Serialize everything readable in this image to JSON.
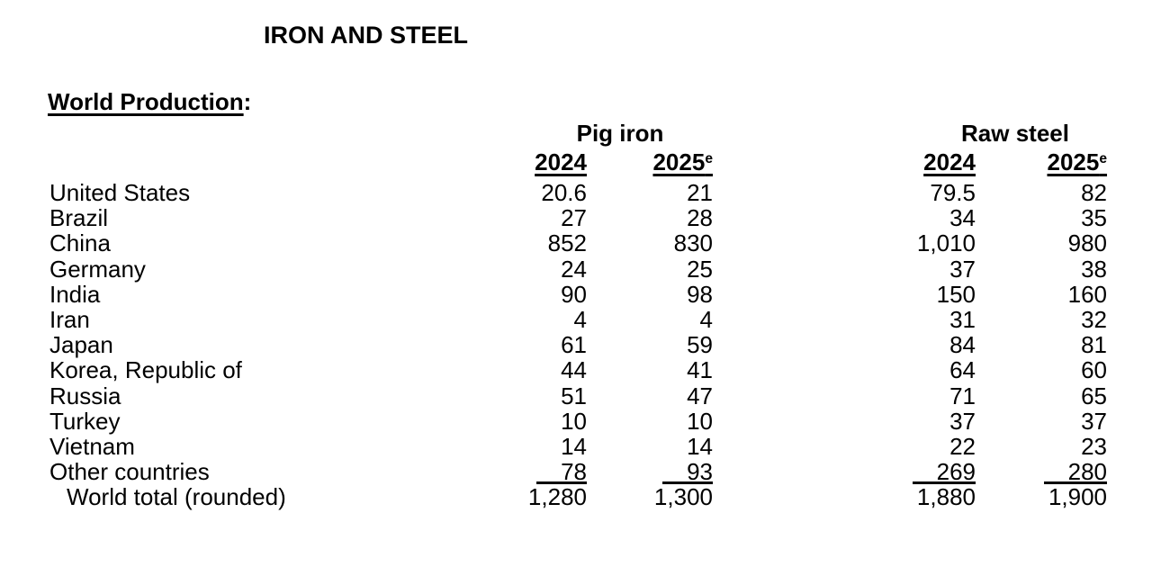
{
  "document": {
    "title": "IRON AND STEEL"
  },
  "section": {
    "label": "World Production",
    "punctuation": ":"
  },
  "colors": {
    "text": "#000000",
    "background": "#ffffff"
  },
  "table": {
    "group_headers": [
      {
        "label": "Pig iron"
      },
      {
        "label": "Raw steel"
      }
    ],
    "year_headers": [
      {
        "year": "2024",
        "superscript": ""
      },
      {
        "year": "2025",
        "superscript": "e"
      },
      {
        "year": "2024",
        "superscript": ""
      },
      {
        "year": "2025",
        "superscript": "e"
      }
    ],
    "rows": [
      {
        "country": "United States",
        "pig_iron_2024": "20.6",
        "pig_iron_2025e": "21",
        "raw_steel_2024": "79.5",
        "raw_steel_2025e": "82"
      },
      {
        "country": "Brazil",
        "pig_iron_2024": "27",
        "pig_iron_2025e": "28",
        "raw_steel_2024": "34",
        "raw_steel_2025e": "35"
      },
      {
        "country": "China",
        "pig_iron_2024": "852",
        "pig_iron_2025e": "830",
        "raw_steel_2024": "1,010",
        "raw_steel_2025e": "980"
      },
      {
        "country": "Germany",
        "pig_iron_2024": "24",
        "pig_iron_2025e": "25",
        "raw_steel_2024": "37",
        "raw_steel_2025e": "38"
      },
      {
        "country": "India",
        "pig_iron_2024": "90",
        "pig_iron_2025e": "98",
        "raw_steel_2024": "150",
        "raw_steel_2025e": "160"
      },
      {
        "country": "Iran",
        "pig_iron_2024": "4",
        "pig_iron_2025e": "4",
        "raw_steel_2024": "31",
        "raw_steel_2025e": "32"
      },
      {
        "country": "Japan",
        "pig_iron_2024": "61",
        "pig_iron_2025e": "59",
        "raw_steel_2024": "84",
        "raw_steel_2025e": "81"
      },
      {
        "country": "Korea, Republic of",
        "pig_iron_2024": "44",
        "pig_iron_2025e": "41",
        "raw_steel_2024": "64",
        "raw_steel_2025e": "60"
      },
      {
        "country": "Russia",
        "pig_iron_2024": "51",
        "pig_iron_2025e": "47",
        "raw_steel_2024": "71",
        "raw_steel_2025e": "65"
      },
      {
        "country": "Turkey",
        "pig_iron_2024": "10",
        "pig_iron_2025e": "10",
        "raw_steel_2024": "37",
        "raw_steel_2025e": "37"
      },
      {
        "country": "Vietnam",
        "pig_iron_2024": "14",
        "pig_iron_2025e": "14",
        "raw_steel_2024": "22",
        "raw_steel_2025e": "23"
      }
    ],
    "other_countries_row": {
      "country": "Other countries",
      "pig_iron_2024": "78",
      "pig_iron_2025e": "93",
      "raw_steel_2024": "269",
      "raw_steel_2025e": "280"
    },
    "world_total_row": {
      "country": "World total (rounded)",
      "pig_iron_2024": "1,280",
      "pig_iron_2025e": "1,300",
      "raw_steel_2024": "1,880",
      "raw_steel_2025e": "1,900"
    }
  }
}
